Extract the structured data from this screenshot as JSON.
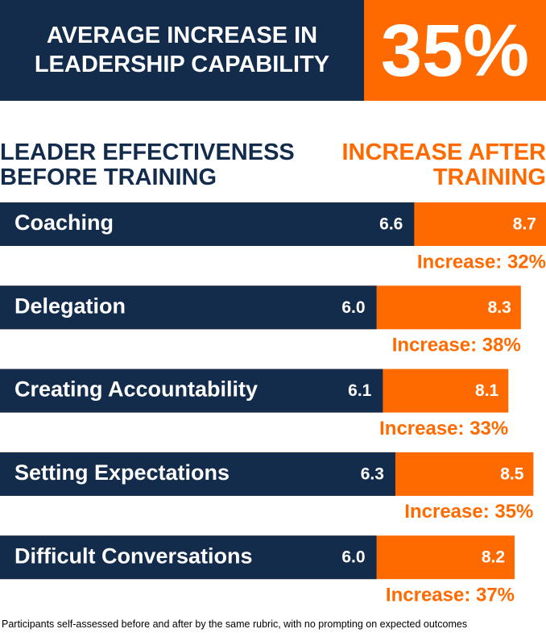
{
  "chart_data": {
    "type": "bar",
    "title": "AVERAGE  INCREASE IN LEADERSHIP CAPABILITY",
    "headline": "35%",
    "categories": [
      "Coaching",
      "Delegation",
      "Creating Accountability",
      "Setting Expectations",
      "Difficult Conversations"
    ],
    "series": [
      {
        "name": "LEADER EFFECTIVENESS BEFORE TRAINING",
        "color": "#142c4c",
        "values": [
          6.6,
          6.0,
          6.1,
          6.3,
          6.0
        ],
        "value_labels": [
          "6.6",
          "6.0",
          "6.1",
          "6.3",
          "6.0"
        ]
      },
      {
        "name": "INCREASE AFTER TRAINING",
        "color": "#ff6a00",
        "values": [
          8.7,
          8.3,
          8.1,
          8.5,
          8.2
        ],
        "value_labels": [
          "8.7",
          "8.3",
          "8.1",
          "8.5",
          "8.2"
        ]
      }
    ],
    "annotations": [
      "Increase: 32%",
      "Increase: 38%",
      "Increase: 33%",
      "Increase: 35%",
      "Increase: 37%"
    ],
    "xlim": [
      0,
      8.7
    ],
    "footnote": "Participants self-assessed before and after by the same rubric, with no prompting on expected outcomes"
  }
}
